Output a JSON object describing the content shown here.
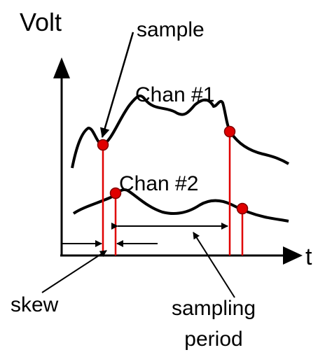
{
  "labels": {
    "y_axis": "Volt",
    "sample": "sample",
    "chan1": "Chan #1",
    "chan2": "Chan #2",
    "x_axis": "t",
    "skew": "skew",
    "sampling_period": [
      "sampling",
      "period"
    ]
  }
}
